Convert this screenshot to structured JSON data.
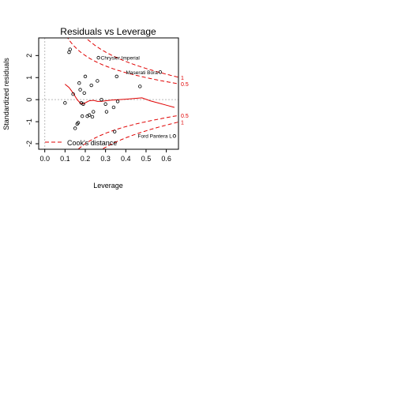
{
  "chart_data": {
    "type": "scatter",
    "title": "Residuals vs Leverage",
    "xlabel": "Leverage",
    "ylabel": "Standardized residuals",
    "xlim": [
      -0.03,
      0.66
    ],
    "ylim": [
      -2.25,
      2.8
    ],
    "xticks": [
      0.0,
      0.1,
      0.2,
      0.3,
      0.4,
      0.5,
      0.6
    ],
    "xtick_labels": [
      "0.0",
      "0.1",
      "0.2",
      "0.3",
      "0.4",
      "0.5",
      "0.6"
    ],
    "yticks": [
      -2,
      -1,
      0,
      1,
      2
    ],
    "ytick_labels": [
      "-2",
      "-1",
      "0",
      "1",
      "2"
    ],
    "points": [
      {
        "x": 0.1,
        "y": -0.15
      },
      {
        "x": 0.12,
        "y": 2.15
      },
      {
        "x": 0.125,
        "y": 2.28
      },
      {
        "x": 0.14,
        "y": 0.25
      },
      {
        "x": 0.15,
        "y": -1.3
      },
      {
        "x": 0.16,
        "y": -1.1
      },
      {
        "x": 0.165,
        "y": -1.05
      },
      {
        "x": 0.17,
        "y": 0.75
      },
      {
        "x": 0.175,
        "y": 0.45
      },
      {
        "x": 0.18,
        "y": -0.15
      },
      {
        "x": 0.185,
        "y": -0.75
      },
      {
        "x": 0.19,
        "y": -0.2
      },
      {
        "x": 0.195,
        "y": 0.3
      },
      {
        "x": 0.2,
        "y": 1.05
      },
      {
        "x": 0.21,
        "y": -0.75
      },
      {
        "x": 0.22,
        "y": -0.7
      },
      {
        "x": 0.23,
        "y": 0.65
      },
      {
        "x": 0.235,
        "y": -0.78
      },
      {
        "x": 0.24,
        "y": -0.55
      },
      {
        "x": 0.26,
        "y": 0.85
      },
      {
        "x": 0.265,
        "y": 1.9
      },
      {
        "x": 0.28,
        "y": 0.0
      },
      {
        "x": 0.3,
        "y": -0.2
      },
      {
        "x": 0.305,
        "y": -0.55
      },
      {
        "x": 0.34,
        "y": -0.35
      },
      {
        "x": 0.345,
        "y": -1.45
      },
      {
        "x": 0.355,
        "y": 1.05
      },
      {
        "x": 0.36,
        "y": -0.08
      },
      {
        "x": 0.47,
        "y": 0.6
      },
      {
        "x": 0.57,
        "y": 1.25
      },
      {
        "x": 0.64,
        "y": -1.65
      }
    ],
    "labels": [
      {
        "text": "Chrysler Imperial",
        "x": 0.265,
        "y": 1.9
      },
      {
        "text": "Maserati Bora",
        "x": 0.57,
        "y": 1.25
      },
      {
        "text": "Ford Pantera L",
        "x": 0.64,
        "y": -1.65
      }
    ],
    "smooth_line": {
      "x": [
        0.1,
        0.12,
        0.14,
        0.16,
        0.175,
        0.19,
        0.205,
        0.22,
        0.24,
        0.26,
        0.28,
        0.3,
        0.33,
        0.36,
        0.4,
        0.44,
        0.48,
        0.52,
        0.56,
        0.6,
        0.64
      ],
      "y": [
        0.7,
        0.55,
        0.3,
        0.0,
        -0.15,
        -0.2,
        -0.12,
        -0.05,
        -0.03,
        -0.08,
        -0.08,
        -0.05,
        -0.02,
        0.0,
        0.02,
        0.05,
        0.08,
        -0.05,
        -0.15,
        -0.25,
        -0.35
      ]
    },
    "cooks_curves": [
      {
        "level": 0.5,
        "label": "0.5",
        "sign": 1
      },
      {
        "level": 0.5,
        "label": "0.5",
        "sign": -1
      },
      {
        "level": 1,
        "label": "1",
        "sign": 1
      },
      {
        "level": 1,
        "label": "1",
        "sign": -1
      }
    ],
    "n_params": 2,
    "legend": {
      "label": "Cook's distance",
      "position": "bottom-left"
    },
    "colors": {
      "points": "#000000",
      "smooth": "#e00000",
      "cooks": "#e00000",
      "reference": "#bbbbbb",
      "axes": "#000000"
    }
  }
}
